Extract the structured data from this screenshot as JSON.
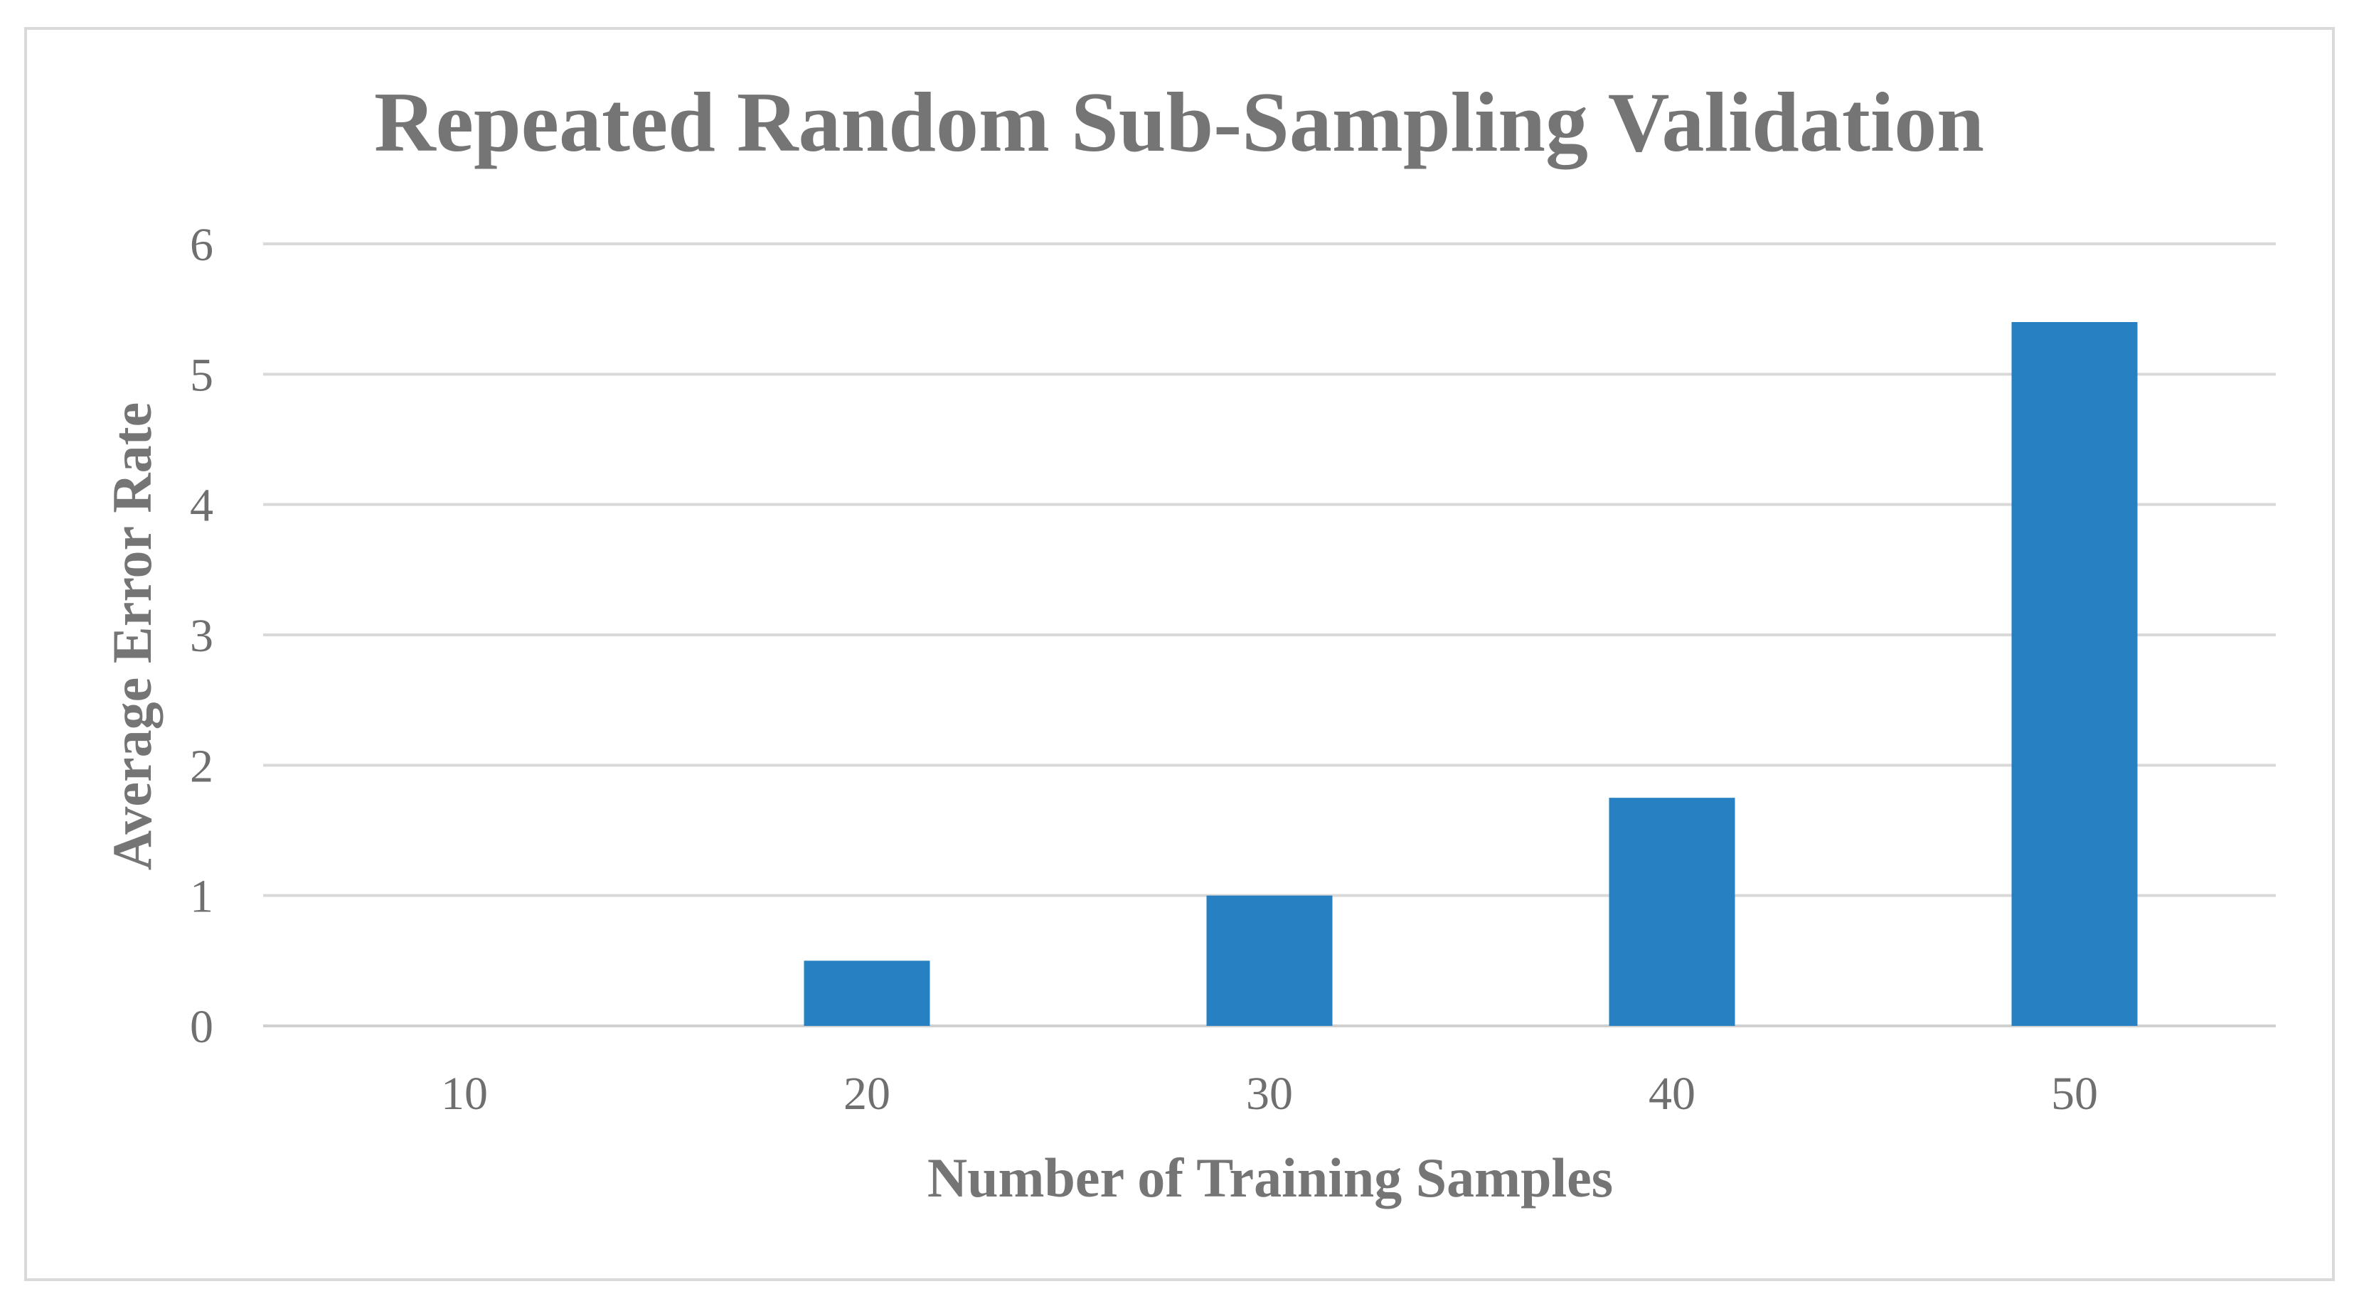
{
  "chart_data": {
    "type": "bar",
    "title": "Repeated Random Sub-Sampling Validation",
    "xlabel": "Number of Training Samples",
    "ylabel": "Average Error Rate",
    "categories": [
      "10",
      "20",
      "30",
      "40",
      "50"
    ],
    "values": [
      0,
      0.5,
      1,
      1.75,
      5.4
    ],
    "ylim": [
      0,
      6
    ],
    "yticks": [
      "0",
      "1",
      "2",
      "3",
      "4",
      "5",
      "6"
    ],
    "grid": true,
    "legend": "none",
    "bar_color": "#2680c2"
  }
}
